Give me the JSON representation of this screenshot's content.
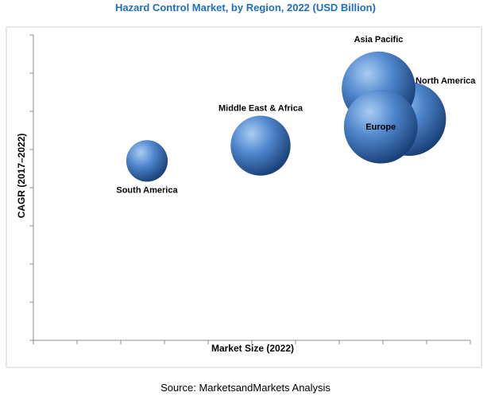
{
  "chart_data": {
    "type": "bubble",
    "title": "Hazard Control Market, by Region, 2022 (USD Billion)",
    "xlabel": "Market Size (2022)",
    "ylabel": "CAGR (2017–2022)",
    "xlim": [
      0,
      10
    ],
    "ylim": [
      0,
      8
    ],
    "grid": false,
    "points": [
      {
        "label": "South America",
        "x": 2.6,
        "y": 4.7,
        "size": 0.9
      },
      {
        "label": "Middle East & Africa",
        "x": 5.2,
        "y": 5.1,
        "size": 1.3
      },
      {
        "label": "North America",
        "x": 8.6,
        "y": 5.8,
        "size": 1.6
      },
      {
        "label": "Asia Pacific",
        "x": 7.9,
        "y": 6.6,
        "size": 1.6
      },
      {
        "label": "Europe",
        "x": 7.95,
        "y": 5.6,
        "size": 1.6
      }
    ]
  },
  "source": "Source: MarketsandMarkets Analysis",
  "colors": {
    "bubble_light": "#9cc3ee",
    "bubble_mid": "#4a80c8",
    "bubble_dark": "#173f78",
    "title": "#1f6fbf"
  }
}
